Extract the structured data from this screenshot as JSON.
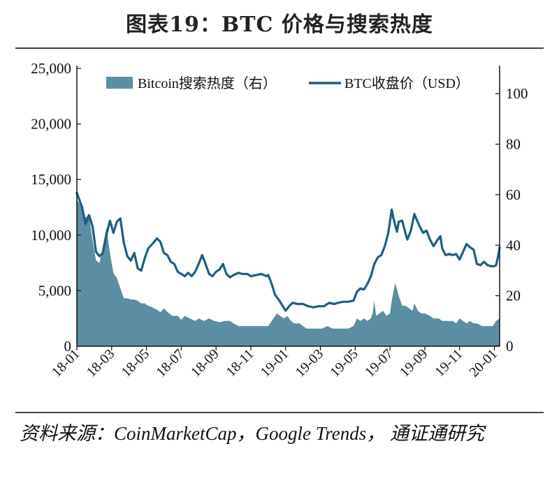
{
  "title": "图表19：BTC 价格与搜索热度",
  "source": "资料来源：CoinMarketCap，Google Trends， 通证通研究",
  "colors": {
    "price_line": "#1e5e80",
    "search_area": "#5b8ea2",
    "axis": "#111111"
  },
  "chart_data": {
    "type": "line",
    "title": "图表19：BTC 价格与搜索热度",
    "x_tick_labels": [
      "18-01",
      "18-03",
      "18-05",
      "18-07",
      "18-09",
      "18-11",
      "19-01",
      "19-03",
      "19-05",
      "19-07",
      "19-09",
      "19-11",
      "20-01"
    ],
    "x_range_months": [
      0,
      24.3
    ],
    "left_axis": {
      "ylim": [
        0,
        25000
      ],
      "ticks": [
        0,
        5000,
        10000,
        15000,
        20000,
        25000
      ],
      "tick_labels": [
        "0",
        "5,000",
        "10,000",
        "15,000",
        "20,000",
        "25,000"
      ]
    },
    "right_axis": {
      "ylim": [
        0,
        110
      ],
      "ticks": [
        0,
        20,
        40,
        60,
        80,
        100
      ],
      "tick_labels": [
        "0",
        "20",
        "40",
        "60",
        "80",
        "100"
      ]
    },
    "legend": {
      "position": "top",
      "entries": [
        "Bitcoin搜索热度（右）",
        "BTC收盘价（USD）"
      ]
    },
    "series": [
      {
        "name": "BTC收盘价（USD）",
        "type": "line",
        "axis": "left",
        "points": [
          [
            0.0,
            13800
          ],
          [
            0.3,
            12500
          ],
          [
            0.5,
            11000
          ],
          [
            0.7,
            11800
          ],
          [
            0.9,
            10800
          ],
          [
            1.1,
            8500
          ],
          [
            1.3,
            8100
          ],
          [
            1.5,
            8400
          ],
          [
            1.7,
            10000
          ],
          [
            1.9,
            11300
          ],
          [
            2.1,
            10200
          ],
          [
            2.3,
            11200
          ],
          [
            2.5,
            11500
          ],
          [
            2.7,
            9300
          ],
          [
            2.9,
            8100
          ],
          [
            3.1,
            7700
          ],
          [
            3.3,
            8400
          ],
          [
            3.5,
            7000
          ],
          [
            3.7,
            6800
          ],
          [
            3.9,
            7900
          ],
          [
            4.1,
            8800
          ],
          [
            4.4,
            9300
          ],
          [
            4.6,
            9700
          ],
          [
            4.8,
            9400
          ],
          [
            5.0,
            8400
          ],
          [
            5.2,
            8200
          ],
          [
            5.4,
            7600
          ],
          [
            5.6,
            7400
          ],
          [
            5.8,
            6700
          ],
          [
            6.0,
            6500
          ],
          [
            6.2,
            6300
          ],
          [
            6.4,
            6600
          ],
          [
            6.6,
            6300
          ],
          [
            6.8,
            6700
          ],
          [
            7.0,
            7400
          ],
          [
            7.2,
            8200
          ],
          [
            7.4,
            7400
          ],
          [
            7.6,
            6500
          ],
          [
            7.8,
            6300
          ],
          [
            8.0,
            6700
          ],
          [
            8.2,
            6900
          ],
          [
            8.4,
            7400
          ],
          [
            8.6,
            6500
          ],
          [
            8.8,
            6200
          ],
          [
            9.0,
            6400
          ],
          [
            9.3,
            6600
          ],
          [
            9.5,
            6500
          ],
          [
            9.8,
            6500
          ],
          [
            10.0,
            6300
          ],
          [
            10.3,
            6400
          ],
          [
            10.6,
            6500
          ],
          [
            10.9,
            6300
          ],
          [
            11.0,
            6400
          ],
          [
            11.2,
            5600
          ],
          [
            11.4,
            4600
          ],
          [
            11.6,
            4200
          ],
          [
            11.8,
            3700
          ],
          [
            12.0,
            3200
          ],
          [
            12.2,
            3600
          ],
          [
            12.4,
            3900
          ],
          [
            12.7,
            3800
          ],
          [
            13.0,
            3800
          ],
          [
            13.3,
            3600
          ],
          [
            13.6,
            3500
          ],
          [
            13.9,
            3600
          ],
          [
            14.2,
            3600
          ],
          [
            14.5,
            3900
          ],
          [
            14.8,
            3800
          ],
          [
            15.0,
            3900
          ],
          [
            15.3,
            4000
          ],
          [
            15.6,
            4000
          ],
          [
            15.9,
            4100
          ],
          [
            16.1,
            4900
          ],
          [
            16.3,
            5200
          ],
          [
            16.5,
            5100
          ],
          [
            16.7,
            5600
          ],
          [
            16.9,
            6300
          ],
          [
            17.1,
            7400
          ],
          [
            17.3,
            8000
          ],
          [
            17.5,
            8200
          ],
          [
            17.7,
            9000
          ],
          [
            17.9,
            10200
          ],
          [
            18.0,
            11200
          ],
          [
            18.1,
            12300
          ],
          [
            18.2,
            11500
          ],
          [
            18.4,
            10300
          ],
          [
            18.5,
            11200
          ],
          [
            18.7,
            11300
          ],
          [
            18.9,
            10100
          ],
          [
            19.0,
            9600
          ],
          [
            19.2,
            10400
          ],
          [
            19.4,
            11900
          ],
          [
            19.5,
            11500
          ],
          [
            19.7,
            10800
          ],
          [
            19.9,
            10200
          ],
          [
            20.1,
            10400
          ],
          [
            20.3,
            9600
          ],
          [
            20.5,
            9000
          ],
          [
            20.7,
            9500
          ],
          [
            20.9,
            9900
          ],
          [
            21.0,
            8800
          ],
          [
            21.2,
            8200
          ],
          [
            21.4,
            8300
          ],
          [
            21.6,
            8200
          ],
          [
            21.8,
            8300
          ],
          [
            22.0,
            7800
          ],
          [
            22.2,
            8500
          ],
          [
            22.4,
            9200
          ],
          [
            22.6,
            8900
          ],
          [
            22.8,
            8700
          ],
          [
            23.0,
            7400
          ],
          [
            23.2,
            7300
          ],
          [
            23.4,
            7600
          ],
          [
            23.6,
            7300
          ],
          [
            23.8,
            7200
          ],
          [
            24.0,
            7200
          ],
          [
            24.1,
            7300
          ],
          [
            24.2,
            8000
          ],
          [
            24.3,
            8900
          ]
        ]
      },
      {
        "name": "Bitcoin搜索热度（右）",
        "type": "area",
        "axis": "right",
        "points": [
          [
            0.0,
            58
          ],
          [
            0.3,
            55
          ],
          [
            0.5,
            51
          ],
          [
            0.7,
            52
          ],
          [
            0.9,
            42
          ],
          [
            1.1,
            34
          ],
          [
            1.3,
            33
          ],
          [
            1.5,
            40
          ],
          [
            1.7,
            47
          ],
          [
            1.9,
            37
          ],
          [
            2.1,
            29
          ],
          [
            2.3,
            27
          ],
          [
            2.5,
            23
          ],
          [
            2.7,
            19
          ],
          [
            2.9,
            19
          ],
          [
            3.1,
            18.5
          ],
          [
            3.3,
            18.5
          ],
          [
            3.5,
            18
          ],
          [
            3.7,
            17
          ],
          [
            3.9,
            17
          ],
          [
            4.1,
            16
          ],
          [
            4.3,
            15.5
          ],
          [
            4.6,
            14.5
          ],
          [
            4.8,
            13.5
          ],
          [
            5.0,
            15
          ],
          [
            5.3,
            13
          ],
          [
            5.5,
            12
          ],
          [
            5.8,
            12
          ],
          [
            6.0,
            10.5
          ],
          [
            6.2,
            12
          ],
          [
            6.5,
            11
          ],
          [
            6.8,
            10
          ],
          [
            7.0,
            11
          ],
          [
            7.3,
            10
          ],
          [
            7.6,
            11
          ],
          [
            7.9,
            10
          ],
          [
            8.2,
            9.5
          ],
          [
            8.5,
            10
          ],
          [
            8.8,
            10
          ],
          [
            9.0,
            9
          ],
          [
            9.3,
            8
          ],
          [
            9.6,
            8
          ],
          [
            9.9,
            8
          ],
          [
            10.2,
            8
          ],
          [
            10.5,
            8
          ],
          [
            10.8,
            8
          ],
          [
            11.0,
            8
          ],
          [
            11.3,
            11
          ],
          [
            11.5,
            13
          ],
          [
            11.7,
            12
          ],
          [
            11.9,
            11
          ],
          [
            12.1,
            12
          ],
          [
            12.3,
            10
          ],
          [
            12.5,
            9
          ],
          [
            12.8,
            9
          ],
          [
            13.0,
            8
          ],
          [
            13.2,
            7
          ],
          [
            13.5,
            7
          ],
          [
            13.8,
            7
          ],
          [
            14.1,
            7
          ],
          [
            14.4,
            8
          ],
          [
            14.7,
            7
          ],
          [
            15.0,
            7
          ],
          [
            15.3,
            7
          ],
          [
            15.6,
            7
          ],
          [
            15.9,
            8
          ],
          [
            16.1,
            11
          ],
          [
            16.3,
            10
          ],
          [
            16.5,
            11
          ],
          [
            16.7,
            10
          ],
          [
            16.9,
            11
          ],
          [
            17.0,
            13
          ],
          [
            17.1,
            18
          ],
          [
            17.2,
            12
          ],
          [
            17.4,
            13
          ],
          [
            17.6,
            14
          ],
          [
            17.8,
            12
          ],
          [
            18.0,
            13
          ],
          [
            18.1,
            18
          ],
          [
            18.3,
            25
          ],
          [
            18.5,
            20
          ],
          [
            18.7,
            16
          ],
          [
            18.9,
            16
          ],
          [
            19.1,
            15
          ],
          [
            19.3,
            14
          ],
          [
            19.4,
            17
          ],
          [
            19.6,
            14
          ],
          [
            19.8,
            13
          ],
          [
            20.0,
            13
          ],
          [
            20.3,
            12
          ],
          [
            20.5,
            11
          ],
          [
            20.8,
            11
          ],
          [
            21.0,
            10
          ],
          [
            21.3,
            10
          ],
          [
            21.6,
            10
          ],
          [
            21.8,
            9
          ],
          [
            22.0,
            11
          ],
          [
            22.2,
            10
          ],
          [
            22.4,
            9
          ],
          [
            22.6,
            10
          ],
          [
            22.8,
            9
          ],
          [
            23.0,
            9
          ],
          [
            23.3,
            8
          ],
          [
            23.6,
            8
          ],
          [
            23.9,
            8
          ],
          [
            24.1,
            10
          ],
          [
            24.3,
            11
          ]
        ]
      }
    ]
  }
}
